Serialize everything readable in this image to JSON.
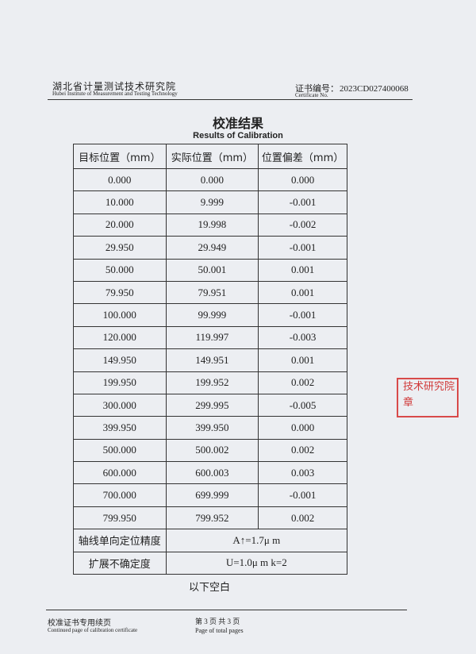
{
  "header": {
    "institute_cn": "湖北省计量测试技术研究院",
    "institute_en": "Hubei Institute of Measurement and Testing Technology",
    "cert_label_cn": "证书编号：",
    "cert_label_en": "Certificate No.",
    "cert_no": "2023CD027400068"
  },
  "title": "校准结果",
  "subtitle": "Results of Calibration",
  "table": {
    "header": [
      "目标位置（mm）",
      "实际位置（mm）",
      "位置偏差（mm）"
    ],
    "rows": [
      [
        "0.000",
        "0.000",
        "0.000"
      ],
      [
        "10.000",
        "9.999",
        "-0.001"
      ],
      [
        "20.000",
        "19.998",
        "-0.002"
      ],
      [
        "29.950",
        "29.949",
        "-0.001"
      ],
      [
        "50.000",
        "50.001",
        "0.001"
      ],
      [
        "79.950",
        "79.951",
        "0.001"
      ],
      [
        "100.000",
        "99.999",
        "-0.001"
      ],
      [
        "120.000",
        "119.997",
        "-0.003"
      ],
      [
        "149.950",
        "149.951",
        "0.001"
      ],
      [
        "199.950",
        "199.952",
        "0.002"
      ],
      [
        "300.000",
        "299.995",
        "-0.005"
      ],
      [
        "399.950",
        "399.950",
        "0.000"
      ],
      [
        "500.000",
        "500.002",
        "0.002"
      ],
      [
        "600.000",
        "600.003",
        "0.003"
      ],
      [
        "700.000",
        "699.999",
        "-0.001"
      ],
      [
        "799.950",
        "799.952",
        "0.002"
      ]
    ],
    "summary": [
      {
        "label": "轴线单向定位精度",
        "value": "A↑=1.7μ m"
      },
      {
        "label": "扩展不确定度",
        "value": "U=1.0μ m   k=2"
      }
    ]
  },
  "blank_note": "以下空白",
  "stamp": [
    "技术研究院",
    "章"
  ],
  "footer": {
    "left_cn": "校准证书专用续页",
    "left_en": "Continued page of calibration certificate",
    "page_cn": "第 3 页 共 3 页",
    "page_en": "Page of total pages"
  }
}
